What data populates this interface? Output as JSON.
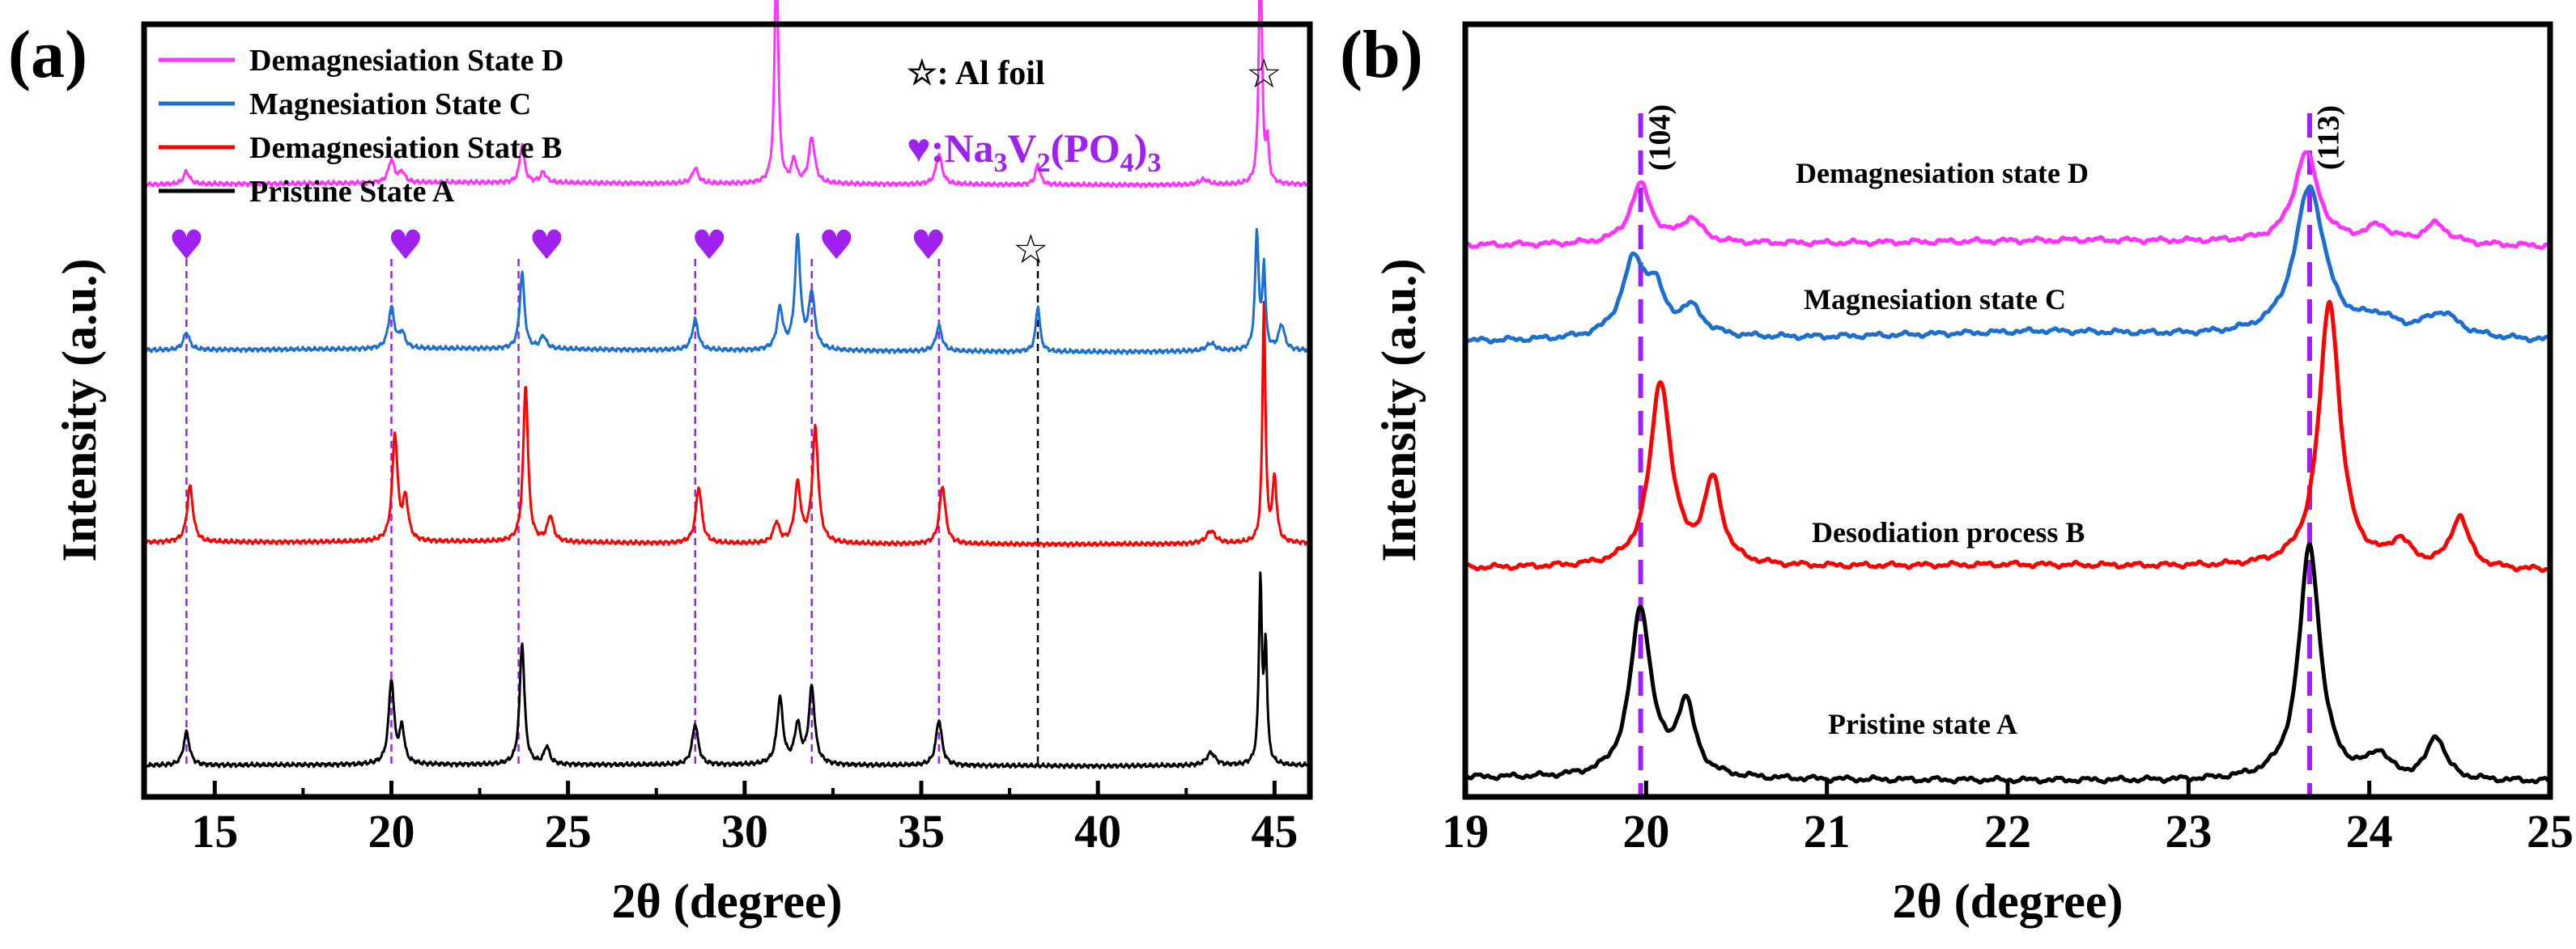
{
  "chart_data": [
    {
      "panel_label": "(a)",
      "type": "line",
      "xlabel": "2θ (degree)",
      "ylabel": "Intensity (a.u.)",
      "xlim": [
        13,
        46
      ],
      "xticks": [
        15,
        20,
        25,
        30,
        35,
        40,
        45
      ],
      "xtick_labels": [
        "15",
        "20",
        "25",
        "30",
        "35",
        "40",
        "45"
      ],
      "y_ticks_shown": false,
      "legend": {
        "placement": "top-left"
      },
      "series": [
        {
          "name": "Pristine State A",
          "color": "#000000",
          "offset": 0,
          "baseline": [
            [
              13,
              0.12
            ],
            [
              20,
              0.16
            ],
            [
              30,
              0.14
            ],
            [
              40,
              0.1
            ],
            [
              44,
              0.12
            ],
            [
              46,
              0.12
            ]
          ],
          "peaks": [
            [
              14.2,
              1.3,
              0.1
            ],
            [
              20.0,
              3.3,
              0.09
            ],
            [
              20.3,
              1.4,
              0.08
            ],
            [
              23.7,
              4.8,
              0.08
            ],
            [
              24.4,
              0.7,
              0.09
            ],
            [
              28.6,
              1.6,
              0.1
            ],
            [
              31.0,
              2.6,
              0.1
            ],
            [
              31.5,
              1.5,
              0.1
            ],
            [
              31.9,
              3.0,
              0.1
            ],
            [
              35.5,
              1.8,
              0.1
            ],
            [
              43.2,
              0.5,
              0.15
            ],
            [
              44.6,
              7.2,
              0.05
            ],
            [
              44.75,
              4.5,
              0.05
            ]
          ]
        },
        {
          "name": "Demagnesiation State B",
          "color": "#ff0000",
          "offset": 8.7,
          "baseline": [
            [
              13,
              0.18
            ],
            [
              22,
              0.2
            ],
            [
              30,
              0.12
            ],
            [
              40,
              0.1
            ],
            [
              46,
              0.15
            ]
          ],
          "peaks": [
            [
              14.3,
              2.2,
              0.1
            ],
            [
              20.1,
              4.2,
              0.09
            ],
            [
              20.4,
              1.6,
              0.09
            ],
            [
              23.8,
              6.2,
              0.08
            ],
            [
              24.5,
              1.0,
              0.1
            ],
            [
              28.7,
              2.2,
              0.1
            ],
            [
              30.9,
              0.8,
              0.1
            ],
            [
              31.5,
              2.3,
              0.1
            ],
            [
              32.0,
              4.5,
              0.1
            ],
            [
              35.6,
              2.3,
              0.1
            ],
            [
              43.2,
              0.5,
              0.15
            ],
            [
              44.7,
              9.4,
              0.05
            ],
            [
              45.0,
              2.5,
              0.07
            ]
          ]
        },
        {
          "name": "Magnesiation State C",
          "color": "#1a6fd1",
          "offset": 16.2,
          "baseline": [
            [
              13,
              0.22
            ],
            [
              22,
              0.28
            ],
            [
              30,
              0.2
            ],
            [
              40,
              0.15
            ],
            [
              46,
              0.2
            ]
          ],
          "peaks": [
            [
              14.2,
              0.7,
              0.1
            ],
            [
              20.0,
              1.6,
              0.1
            ],
            [
              20.3,
              0.6,
              0.1
            ],
            [
              23.7,
              3.0,
              0.08
            ],
            [
              24.3,
              0.5,
              0.1
            ],
            [
              28.6,
              1.2,
              0.1
            ],
            [
              31.0,
              1.6,
              0.1
            ],
            [
              31.5,
              4.4,
              0.09
            ],
            [
              31.9,
              2.2,
              0.1
            ],
            [
              35.5,
              1.0,
              0.1
            ],
            [
              38.3,
              1.8,
              0.07
            ],
            [
              43.2,
              0.3,
              0.15
            ],
            [
              44.5,
              4.6,
              0.06
            ],
            [
              44.7,
              3.2,
              0.05
            ],
            [
              45.2,
              1.0,
              0.1
            ]
          ]
        },
        {
          "name": "Demagnesiation State D",
          "color": "#ff33ff",
          "offset": 22.8,
          "baseline": [
            [
              13,
              0.12
            ],
            [
              22,
              0.2
            ],
            [
              30,
              0.15
            ],
            [
              40,
              0.1
            ],
            [
              46,
              0.12
            ]
          ],
          "peaks": [
            [
              14.2,
              0.5,
              0.1
            ],
            [
              20.0,
              0.9,
              0.1
            ],
            [
              20.3,
              0.4,
              0.1
            ],
            [
              23.7,
              1.5,
              0.08
            ],
            [
              24.3,
              0.4,
              0.1
            ],
            [
              28.6,
              0.6,
              0.1
            ],
            [
              30.9,
              9.2,
              0.06
            ],
            [
              31.4,
              0.9,
              0.08
            ],
            [
              31.9,
              1.8,
              0.1
            ],
            [
              35.5,
              1.2,
              0.1
            ],
            [
              38.3,
              0.8,
              0.08
            ],
            [
              43.0,
              0.2,
              0.15
            ],
            [
              44.6,
              10.0,
              0.05
            ],
            [
              44.8,
              1.5,
              0.05
            ]
          ]
        }
      ],
      "ref_lines": {
        "na3v2po43": {
          "x": [
            14.2,
            20.0,
            23.6,
            28.6,
            31.9,
            35.5
          ],
          "color": "#a020f0"
        },
        "al_foil": {
          "x": [
            38.3
          ],
          "color": "#000000"
        }
      },
      "markers": {
        "hearts": [
          14.2,
          20.4,
          24.4,
          29.0,
          32.6,
          35.2
        ],
        "stars": [
          38.1,
          44.7
        ]
      },
      "annotations": {
        "al_foil": "☆: Al foil",
        "nvp": {
          "prefix": "♥:Na",
          "s1": "3",
          "mid1": "V",
          "s2": "2",
          "mid2": "(PO",
          "s3": "4",
          "end": ")",
          "s4": "3"
        }
      },
      "heart_symbol": "♥",
      "star_symbol": "☆"
    },
    {
      "panel_label": "(b)",
      "type": "line",
      "xlabel": "2θ (degree)",
      "ylabel": "Intensity (a.u.)",
      "xlim": [
        19,
        25
      ],
      "xticks": [
        19,
        20,
        21,
        22,
        23,
        24,
        25
      ],
      "xtick_labels": [
        "19",
        "20",
        "21",
        "22",
        "23",
        "24",
        "25"
      ],
      "y_ticks_shown": false,
      "series": [
        {
          "name": "Pristine state A",
          "color": "#000000",
          "offset": 0,
          "baseline": [
            [
              19,
              0.18
            ],
            [
              21,
              0.12
            ],
            [
              22.5,
              0.1
            ],
            [
              25,
              0.08
            ]
          ],
          "peaks": [
            [
              19.97,
              4.3,
              0.07
            ],
            [
              20.22,
              1.8,
              0.06
            ],
            [
              23.67,
              6.0,
              0.07
            ],
            [
              24.05,
              0.6,
              0.07
            ],
            [
              24.37,
              1.1,
              0.06
            ]
          ]
        },
        {
          "name": "Desodiation process B",
          "color": "#ff0000",
          "offset": 5.3,
          "baseline": [
            [
              19,
              0.22
            ],
            [
              21,
              0.25
            ],
            [
              22,
              0.3
            ],
            [
              25,
              0.15
            ]
          ],
          "peaks": [
            [
              20.08,
              4.7,
              0.07
            ],
            [
              20.37,
              2.1,
              0.06
            ],
            [
              23.78,
              6.8,
              0.07
            ],
            [
              24.17,
              0.6,
              0.07
            ],
            [
              24.5,
              1.3,
              0.06
            ]
          ]
        },
        {
          "name": "Magnesiation state C",
          "color": "#1a6fd1",
          "offset": 11.1,
          "baseline": [
            [
              19,
              0.2
            ],
            [
              21,
              0.3
            ],
            [
              22.2,
              0.45
            ],
            [
              23,
              0.35
            ],
            [
              25,
              0.2
            ]
          ],
          "peaks": [
            [
              19.93,
              1.9,
              0.08
            ],
            [
              20.05,
              1.0,
              0.06
            ],
            [
              20.25,
              0.7,
              0.08
            ],
            [
              23.67,
              3.8,
              0.1
            ],
            [
              24.05,
              0.4,
              0.12
            ],
            [
              24.4,
              0.6,
              0.12
            ]
          ]
        },
        {
          "name": "Demagnesiation state D",
          "color": "#ff33ff",
          "offset": 13.6,
          "baseline": [
            [
              19,
              0.15
            ],
            [
              21,
              0.2
            ],
            [
              22.4,
              0.28
            ],
            [
              25,
              0.12
            ]
          ],
          "peaks": [
            [
              19.97,
              1.5,
              0.07
            ],
            [
              20.25,
              0.6,
              0.07
            ],
            [
              23.65,
              2.3,
              0.08
            ],
            [
              24.05,
              0.4,
              0.08
            ],
            [
              24.37,
              0.5,
              0.08
            ]
          ]
        }
      ],
      "ref_lines": {
        "x": [
          19.97,
          23.67
        ],
        "color": "#a020f0"
      },
      "miller_labels": [
        {
          "text": "(104)",
          "x": 20.13
        },
        {
          "text": "(113)",
          "x": 23.83
        }
      ]
    }
  ]
}
